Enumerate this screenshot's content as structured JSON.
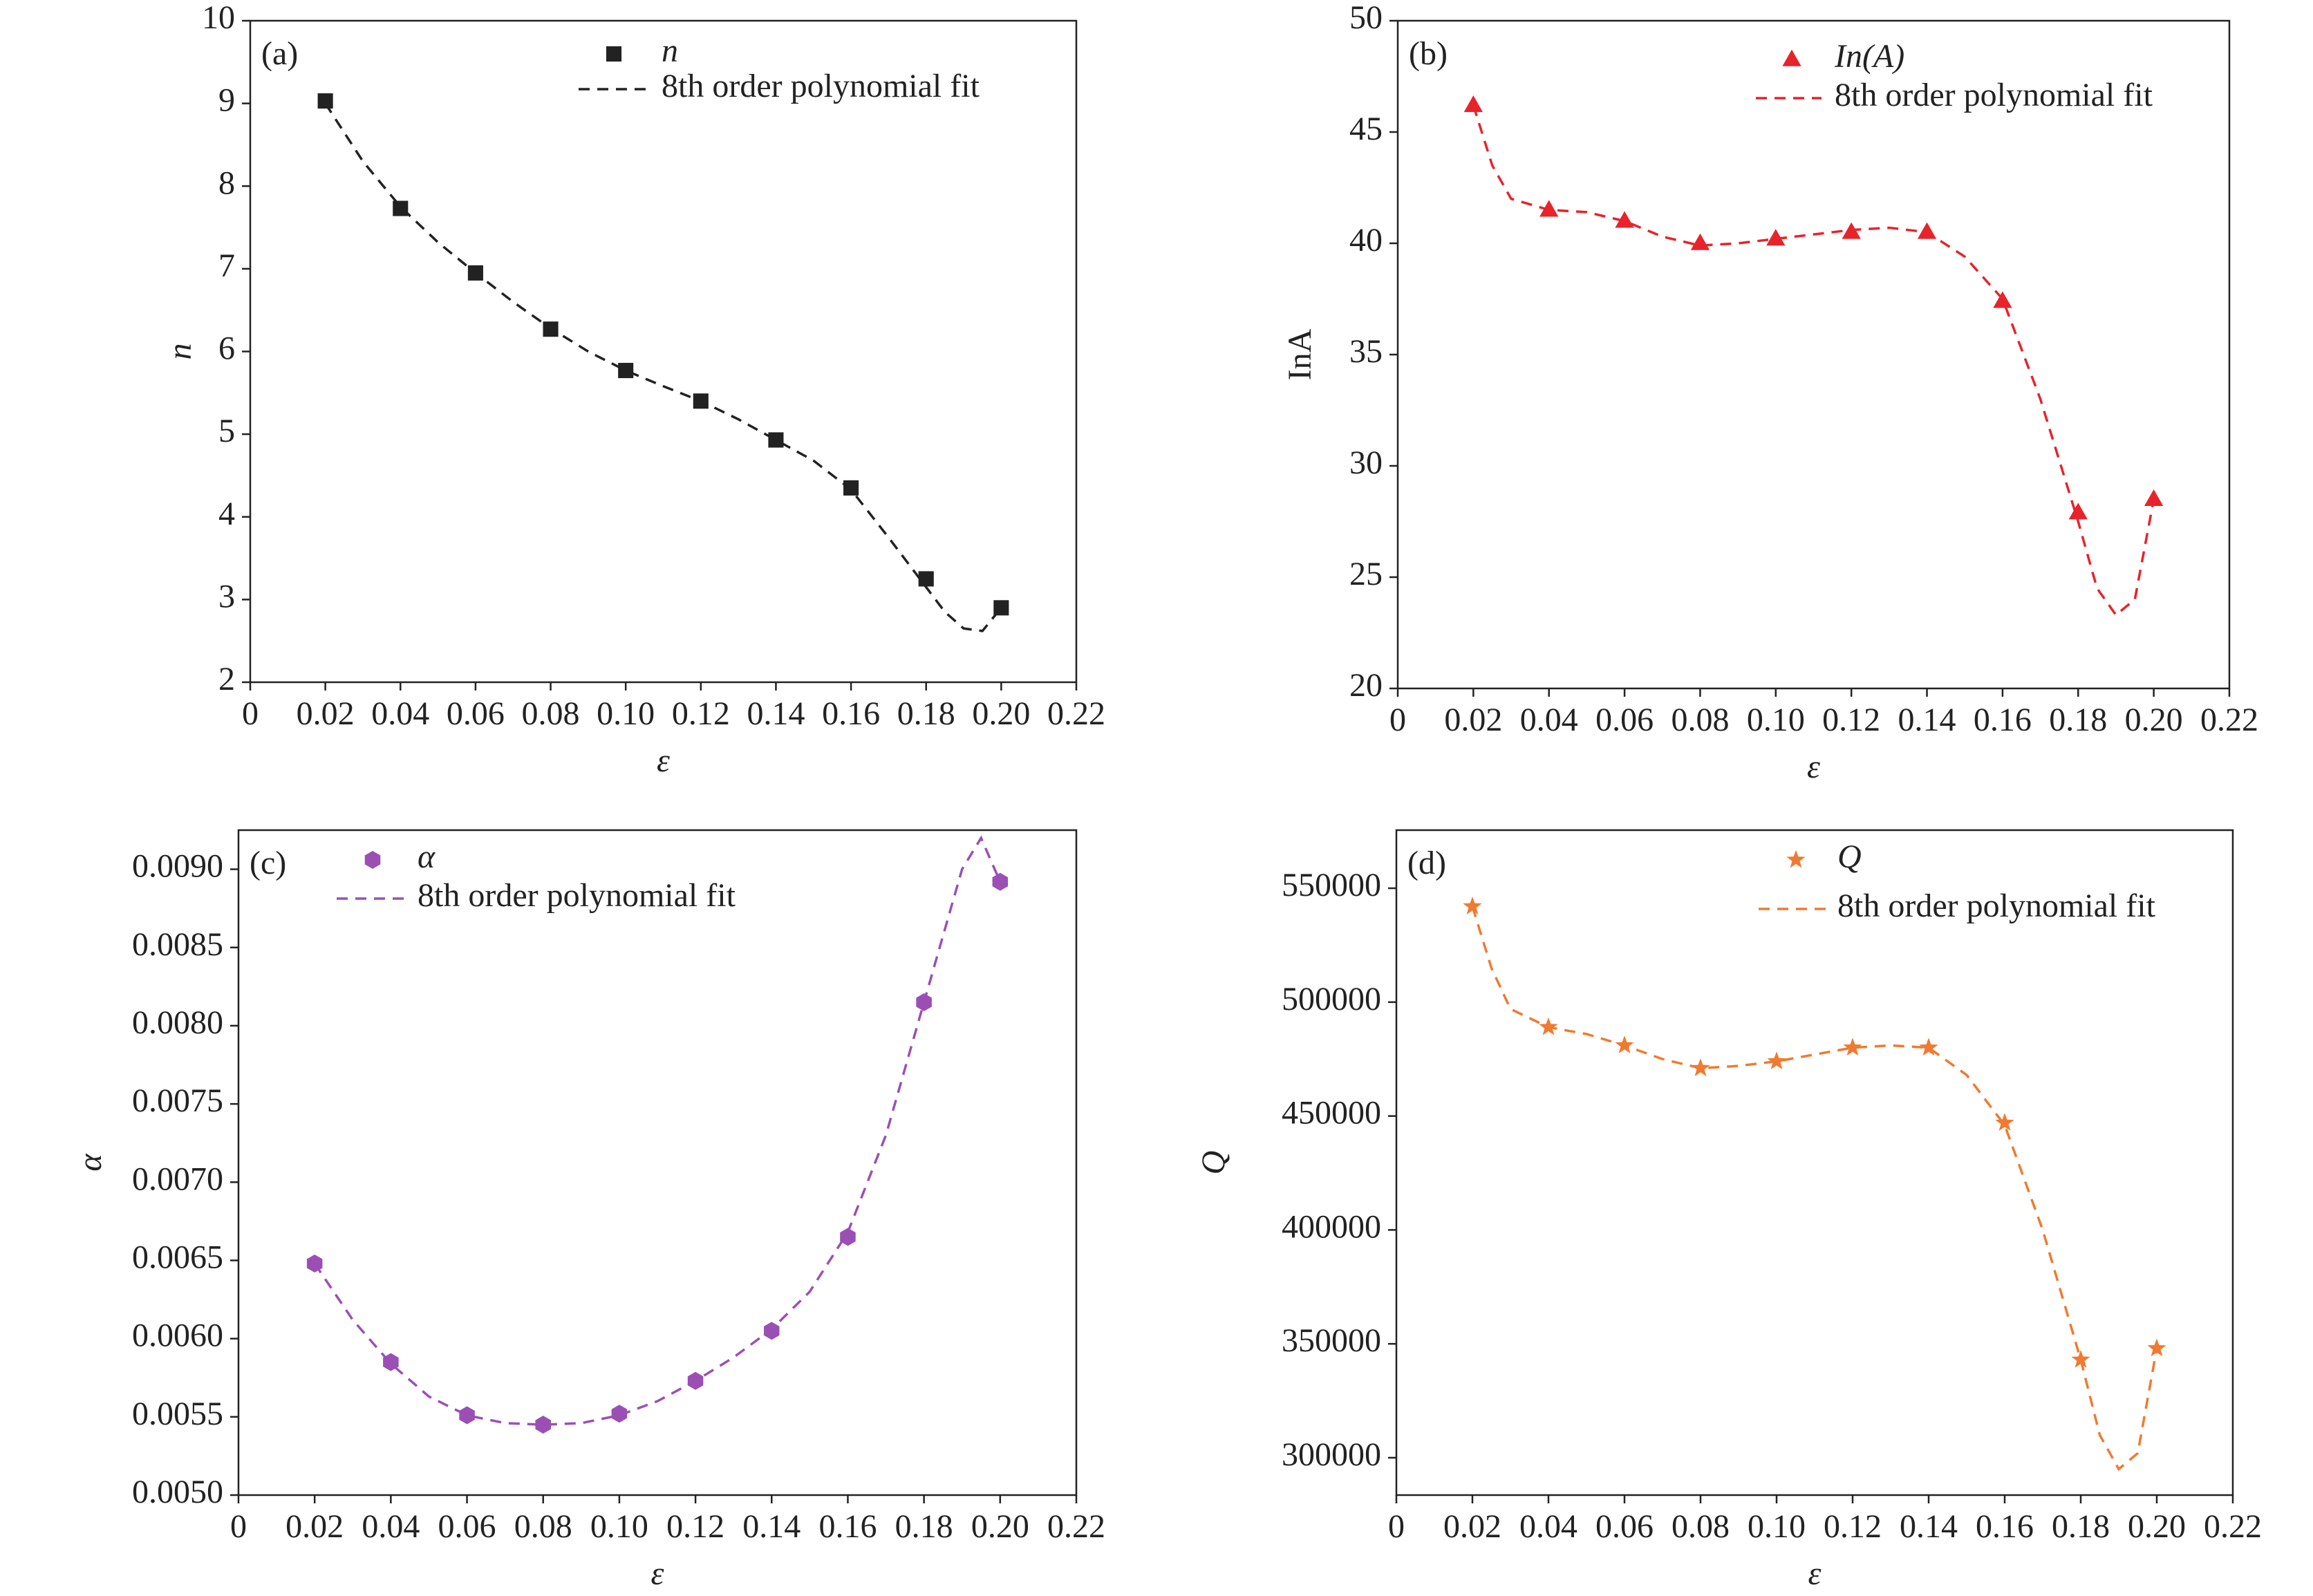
{
  "chart_data": [
    {
      "type": "scatter",
      "panel_label": "(a)",
      "xlabel": "ε",
      "ylabel": "n",
      "xlim": [
        0,
        0.22
      ],
      "xticks": [
        0,
        0.02,
        0.04,
        0.06,
        0.08,
        {
          "value": 0.1,
          "label": "0.10"
        },
        0.12,
        0.14,
        0.16,
        0.18,
        {
          "value": 0.2,
          "label": "0.20"
        },
        0.22
      ],
      "ylim": [
        2,
        10
      ],
      "yticks": [
        2,
        3,
        4,
        5,
        6,
        7,
        8,
        9,
        10
      ],
      "series": [
        {
          "name": "n",
          "color": "#222222",
          "marker": "square",
          "x": [
            0.02,
            0.04,
            0.06,
            0.08,
            0.1,
            0.12,
            0.14,
            0.16,
            0.18,
            0.2
          ],
          "values": [
            9.03,
            7.73,
            6.95,
            6.27,
            5.77,
            5.4,
            4.93,
            4.35,
            3.25,
            2.9
          ]
        },
        {
          "name": "8th order polynomial fit",
          "color": "#222222",
          "style": "dashed",
          "x": [
            0.02,
            0.03,
            0.04,
            0.05,
            0.06,
            0.07,
            0.08,
            0.09,
            0.1,
            0.11,
            0.12,
            0.13,
            0.14,
            0.15,
            0.16,
            0.17,
            0.18,
            0.185,
            0.19,
            0.195,
            0.2
          ],
          "values": [
            9.0,
            8.3,
            7.75,
            7.32,
            6.95,
            6.6,
            6.28,
            6.0,
            5.77,
            5.58,
            5.4,
            5.18,
            4.93,
            4.68,
            4.33,
            3.75,
            3.15,
            2.85,
            2.65,
            2.62,
            2.9
          ]
        }
      ]
    },
    {
      "type": "scatter",
      "panel_label": "(b)",
      "xlabel": "ε",
      "ylabel": "InA",
      "xlim": [
        0,
        0.22
      ],
      "xticks": [
        0,
        0.02,
        0.04,
        0.06,
        0.08,
        {
          "value": 0.1,
          "label": "0.10"
        },
        0.12,
        0.14,
        0.16,
        0.18,
        {
          "value": 0.2,
          "label": "0.20"
        },
        0.22
      ],
      "ylim": [
        20,
        50
      ],
      "yticks": [
        20,
        25,
        30,
        35,
        40,
        45,
        50
      ],
      "series": [
        {
          "name": "In(A)",
          "color": "#e8232a",
          "marker": "triangle",
          "x": [
            0.02,
            0.04,
            0.06,
            0.08,
            0.1,
            0.12,
            0.14,
            0.16,
            0.18,
            0.2
          ],
          "values": [
            46.2,
            41.5,
            41.0,
            40.0,
            40.2,
            40.5,
            40.5,
            37.4,
            27.9,
            28.5
          ]
        },
        {
          "name": "8th order polynomial fit",
          "color": "#e8232a",
          "style": "dashed",
          "x": [
            0.02,
            0.025,
            0.03,
            0.04,
            0.05,
            0.06,
            0.07,
            0.08,
            0.09,
            0.1,
            0.11,
            0.12,
            0.13,
            0.14,
            0.15,
            0.16,
            0.17,
            0.18,
            0.185,
            0.19,
            0.195,
            0.2
          ],
          "values": [
            46.2,
            43.5,
            42.0,
            41.5,
            41.4,
            41.0,
            40.3,
            39.9,
            40.0,
            40.2,
            40.4,
            40.6,
            40.7,
            40.5,
            39.4,
            37.5,
            33.0,
            27.5,
            24.5,
            23.3,
            24.0,
            28.5
          ]
        }
      ]
    },
    {
      "type": "scatter",
      "panel_label": "(c)",
      "xlabel": "ε",
      "ylabel": "α",
      "xlim": [
        0,
        0.22
      ],
      "xticks": [
        0,
        0.02,
        0.04,
        0.06,
        0.08,
        {
          "value": 0.1,
          "label": "0.10"
        },
        0.12,
        0.14,
        0.16,
        0.18,
        {
          "value": 0.2,
          "label": "0.20"
        },
        0.22
      ],
      "ylim": [
        0.005,
        0.00925
      ],
      "yticks": [
        {
          "value": 0.005,
          "label": "0.0050"
        },
        0.0055,
        {
          "value": 0.006,
          "label": "0.0060"
        },
        0.0065,
        {
          "value": 0.007,
          "label": "0.0070"
        },
        0.0075,
        {
          "value": 0.008,
          "label": "0.0080"
        },
        0.0085,
        {
          "value": 0.009,
          "label": "0.0090"
        }
      ],
      "series": [
        {
          "name": "α",
          "color": "#9b4fb5",
          "marker": "hexagon",
          "x": [
            0.02,
            0.04,
            0.06,
            0.08,
            0.1,
            0.12,
            0.14,
            0.16,
            0.18,
            0.2
          ],
          "values": [
            0.00648,
            0.00585,
            0.00551,
            0.00545,
            0.00552,
            0.00573,
            0.00605,
            0.00665,
            0.00815,
            0.00892
          ]
        },
        {
          "name": "8th order polynomial fit",
          "color": "#9b4fb5",
          "style": "dashed",
          "x": [
            0.02,
            0.03,
            0.04,
            0.05,
            0.06,
            0.07,
            0.08,
            0.09,
            0.1,
            0.11,
            0.12,
            0.13,
            0.14,
            0.15,
            0.16,
            0.17,
            0.18,
            0.19,
            0.195,
            0.2
          ],
          "values": [
            0.00648,
            0.00612,
            0.00584,
            0.00563,
            0.00551,
            0.00546,
            0.00545,
            0.00546,
            0.00551,
            0.0056,
            0.00573,
            0.00588,
            0.00606,
            0.0063,
            0.00668,
            0.0073,
            0.00815,
            0.009,
            0.0092,
            0.00892
          ]
        }
      ]
    },
    {
      "type": "scatter",
      "panel_label": "(d)",
      "xlabel": "ε",
      "ylabel": "Q",
      "xlim": [
        0,
        0.22
      ],
      "xticks": [
        0,
        0.02,
        0.04,
        0.06,
        0.08,
        {
          "value": 0.1,
          "label": "0.10"
        },
        0.12,
        0.14,
        0.16,
        0.18,
        {
          "value": 0.2,
          "label": "0.20"
        },
        0.22
      ],
      "ylim": [
        283600,
        575500
      ],
      "yticks": [
        300000,
        350000,
        400000,
        450000,
        500000,
        550000
      ],
      "series": [
        {
          "name": "Q",
          "color": "#f07a30",
          "marker": "star",
          "x": [
            0.02,
            0.04,
            0.06,
            0.08,
            0.1,
            0.12,
            0.14,
            0.16,
            0.18,
            0.2
          ],
          "values": [
            542000,
            489000,
            481000,
            471000,
            474000,
            480000,
            480000,
            447000,
            343000,
            348000
          ]
        },
        {
          "name": "8th order polynomial fit",
          "color": "#f07a30",
          "style": "dashed",
          "x": [
            0.02,
            0.025,
            0.03,
            0.04,
            0.05,
            0.06,
            0.07,
            0.08,
            0.09,
            0.1,
            0.11,
            0.12,
            0.13,
            0.14,
            0.15,
            0.16,
            0.17,
            0.18,
            0.185,
            0.19,
            0.195,
            0.2
          ],
          "values": [
            542000,
            515000,
            497000,
            489000,
            486000,
            481000,
            475000,
            471000,
            472000,
            474000,
            477000,
            480000,
            481000,
            480000,
            468000,
            446000,
            400000,
            343000,
            310000,
            295000,
            302000,
            348000
          ]
        }
      ]
    }
  ]
}
